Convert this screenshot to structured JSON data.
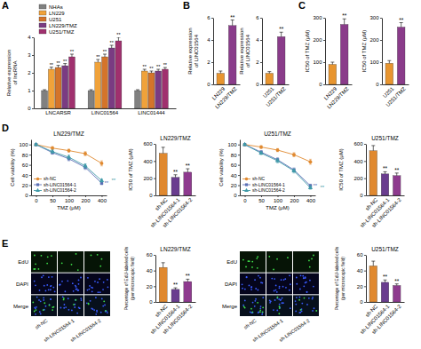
{
  "chart_data": [
    {
      "type": "bar",
      "panel": "A",
      "categories": [
        "LNCARSR",
        "LINC01564",
        "LINC01444"
      ],
      "y_label": [
        "Relative expression",
        "of lncRNA"
      ],
      "ylim": [
        0,
        4
      ],
      "yticks": [
        0,
        1,
        2,
        3,
        4
      ],
      "legend": "top-left",
      "series": [
        {
          "name": "NHAs",
          "color": "#808080",
          "values": [
            1,
            1,
            1
          ],
          "errors": [
            0.05,
            0.05,
            0.05
          ]
        },
        {
          "name": "LN229",
          "color": "#f0a23a",
          "values": [
            2.2,
            2.6,
            2.1
          ],
          "errors": [
            0.12,
            0.15,
            0.1
          ],
          "significance": [
            "**",
            "**",
            "**"
          ]
        },
        {
          "name": "U251",
          "color": "#d4742a",
          "values": [
            2.3,
            2.9,
            2.0
          ],
          "errors": [
            0.12,
            0.15,
            0.1
          ],
          "significance": [
            "**",
            "**",
            "**"
          ]
        },
        {
          "name": "LN229/TMZ",
          "color": "#7a3b82",
          "values": [
            2.4,
            3.4,
            2.1
          ],
          "errors": [
            0.12,
            0.15,
            0.1
          ],
          "significance": [
            "**",
            "**",
            "**"
          ]
        },
        {
          "name": "U251/TMZ",
          "color": "#a0306e",
          "values": [
            2.9,
            3.8,
            2.2
          ],
          "errors": [
            0.15,
            0.2,
            0.1
          ],
          "significance": [
            "**",
            "**",
            "**"
          ]
        }
      ]
    },
    {
      "type": "bar",
      "panel": "B",
      "categories": [
        "LN229",
        "LN229/TMZ"
      ],
      "values": [
        1,
        5.3
      ],
      "errors": [
        0.2,
        0.5
      ],
      "significance": [
        null,
        "**"
      ],
      "colors": [
        "#e8952f",
        "#8a3c8a"
      ],
      "y_label": [
        "Relative expression",
        "of LINC01564"
      ],
      "ylim": [
        0,
        6
      ],
      "yticks": [
        0,
        2,
        4,
        6
      ]
    },
    {
      "type": "bar",
      "categories": [
        "U251",
        "U251/TMZ"
      ],
      "values": [
        1,
        4.3
      ],
      "errors": [
        0.15,
        0.4
      ],
      "significance": [
        null,
        "**"
      ],
      "colors": [
        "#e8952f",
        "#8a3c8a"
      ],
      "y_label": [
        "Relative expression",
        "of LINC01564"
      ],
      "ylim": [
        0,
        6
      ],
      "yticks": [
        0,
        2,
        4,
        6
      ]
    },
    {
      "type": "bar",
      "panel": "C",
      "categories": [
        "LN229",
        "LN229/TMZ"
      ],
      "values": [
        90,
        270
      ],
      "errors": [
        10,
        25
      ],
      "significance": [
        null,
        "**"
      ],
      "colors": [
        "#e8952f",
        "#8a3c8a"
      ],
      "y_label": [
        "IC50 of TMZ (μM)"
      ],
      "ylim": [
        0,
        300
      ],
      "yticks": [
        0,
        100,
        200,
        300
      ]
    },
    {
      "type": "bar",
      "categories": [
        "U251",
        "U251/TMZ"
      ],
      "values": [
        95,
        258
      ],
      "errors": [
        12,
        20
      ],
      "significance": [
        null,
        "**"
      ],
      "colors": [
        "#e8952f",
        "#8a3c8a"
      ],
      "y_label": [
        "IC50 of TMZ (μM)"
      ],
      "ylim": [
        0,
        300
      ],
      "yticks": [
        0,
        100,
        200,
        300
      ]
    },
    {
      "type": "line",
      "panel": "D",
      "title": "LN229/TMZ",
      "categories": [
        "0",
        "50",
        "100",
        "200",
        "400"
      ],
      "x_label": "TMZ (μM)",
      "y_label": [
        "Cell viability (%)"
      ],
      "ylim": [
        0,
        110
      ],
      "yticks": [
        0,
        20,
        40,
        60,
        80,
        100
      ],
      "legend": "bottom-left",
      "series": [
        {
          "name": "sh-NC",
          "color": "#e0892f",
          "marker": "circle",
          "values": [
            100,
            93,
            88,
            82,
            63
          ],
          "errors": [
            2,
            3,
            3,
            4,
            5
          ]
        },
        {
          "name": "sh-LINC01564-1",
          "color": "#5b6fb5",
          "marker": "square",
          "values": [
            100,
            84,
            72,
            55,
            24
          ],
          "errors": [
            2,
            3,
            4,
            4,
            3
          ],
          "significance": [
            null,
            null,
            null,
            null,
            "**"
          ]
        },
        {
          "name": "sh-LINC01564-2",
          "color": "#3f9aa8",
          "marker": "triangle",
          "values": [
            100,
            86,
            75,
            58,
            29
          ],
          "errors": [
            2,
            3,
            4,
            4,
            3
          ],
          "significance": [
            null,
            null,
            null,
            null,
            "**"
          ]
        }
      ]
    },
    {
      "type": "bar",
      "title": "LN229/TMZ",
      "categories": [
        "sh-NC",
        "sh-LINC01564-1",
        "sh-LINC01564-2"
      ],
      "values": [
        490,
        210,
        270
      ],
      "errors": [
        70,
        30,
        40
      ],
      "significance": [
        null,
        "**",
        "**"
      ],
      "colors": [
        "#e0892f",
        "#6a3d8f",
        "#8e3a8e"
      ],
      "y_label": [
        "IC50 of TMZ (μM)"
      ],
      "ylim": [
        0,
        600
      ],
      "yticks": [
        0,
        200,
        400,
        600
      ]
    },
    {
      "type": "line",
      "title": "U251/TMZ",
      "categories": [
        "0",
        "50",
        "100",
        "200",
        "400"
      ],
      "x_label": "TMZ (μM)",
      "y_label": [
        "Cell viability (%)"
      ],
      "ylim": [
        0,
        110
      ],
      "yticks": [
        0,
        20,
        40,
        60,
        80,
        100
      ],
      "legend": "bottom-left",
      "series": [
        {
          "name": "sh-NC",
          "color": "#e0892f",
          "marker": "circle",
          "values": [
            100,
            95,
            89,
            80,
            66
          ],
          "errors": [
            2,
            3,
            3,
            4,
            5
          ]
        },
        {
          "name": "sh-LINC01564-1",
          "color": "#5b6fb5",
          "marker": "square",
          "values": [
            100,
            85,
            70,
            50,
            19
          ],
          "errors": [
            2,
            3,
            4,
            4,
            3
          ],
          "significance": [
            null,
            null,
            null,
            null,
            "**"
          ]
        },
        {
          "name": "sh-LINC01564-2",
          "color": "#3f9aa8",
          "marker": "triangle",
          "values": [
            100,
            83,
            68,
            48,
            15
          ],
          "errors": [
            2,
            3,
            4,
            4,
            3
          ],
          "significance": [
            null,
            null,
            null,
            null,
            "**"
          ]
        }
      ]
    },
    {
      "type": "bar",
      "title": "U251/TMZ",
      "categories": [
        "sh-NC",
        "sh-LINC01564-1",
        "sh-LINC01564-2"
      ],
      "values": [
        520,
        250,
        230
      ],
      "errors": [
        60,
        25,
        30
      ],
      "significance": [
        null,
        "**",
        "**"
      ],
      "colors": [
        "#e0892f",
        "#6a3d8f",
        "#8e3a8e"
      ],
      "y_label": [
        "IC50 of TMZ (μM)"
      ],
      "ylim": [
        0,
        600
      ],
      "yticks": [
        0,
        200,
        400,
        600
      ]
    },
    {
      "type": "image_grid",
      "panel": "E",
      "rows": [
        "EdU",
        "DAPI",
        "Merge"
      ],
      "columns": [
        "sh-NC",
        "sh-LINC01564-1",
        "sh-LINC01564-2"
      ]
    },
    {
      "type": "bar",
      "title": "LN229/TMZ",
      "categories": [
        "sh-NC",
        "sh-LINC01564-1",
        "sh-LINC01564-2"
      ],
      "values": [
        44,
        16,
        26
      ],
      "errors": [
        6,
        2,
        3
      ],
      "significance": [
        null,
        "**",
        "**"
      ],
      "colors": [
        "#e0892f",
        "#6a3d8f",
        "#8e3a8e"
      ],
      "y_label": [
        "Percentage of EdU-labeled cells",
        "(per microscopic field)"
      ],
      "ylim": [
        0,
        60
      ],
      "yticks": [
        0,
        20,
        40,
        60
      ]
    },
    {
      "type": "image_grid",
      "rows": [
        "EdU",
        "DAPI",
        "Merge"
      ],
      "columns": [
        "sh-NC",
        "sh-LINC01564-1",
        "sh-LINC01564-2"
      ]
    },
    {
      "type": "bar",
      "title": "U251/TMZ",
      "categories": [
        "sh-NC",
        "sh-LINC01564-1",
        "sh-LINC01564-2"
      ],
      "values": [
        46,
        25,
        21
      ],
      "errors": [
        6,
        3,
        2
      ],
      "significance": [
        null,
        "**",
        "**"
      ],
      "colors": [
        "#e0892f",
        "#6a3d8f",
        "#8e3a8e"
      ],
      "y_label": [
        "Percentage of EdU-labeled cells",
        "(per microscopic field)"
      ],
      "ylim": [
        0,
        60
      ],
      "yticks": [
        0,
        20,
        40,
        60
      ]
    }
  ]
}
